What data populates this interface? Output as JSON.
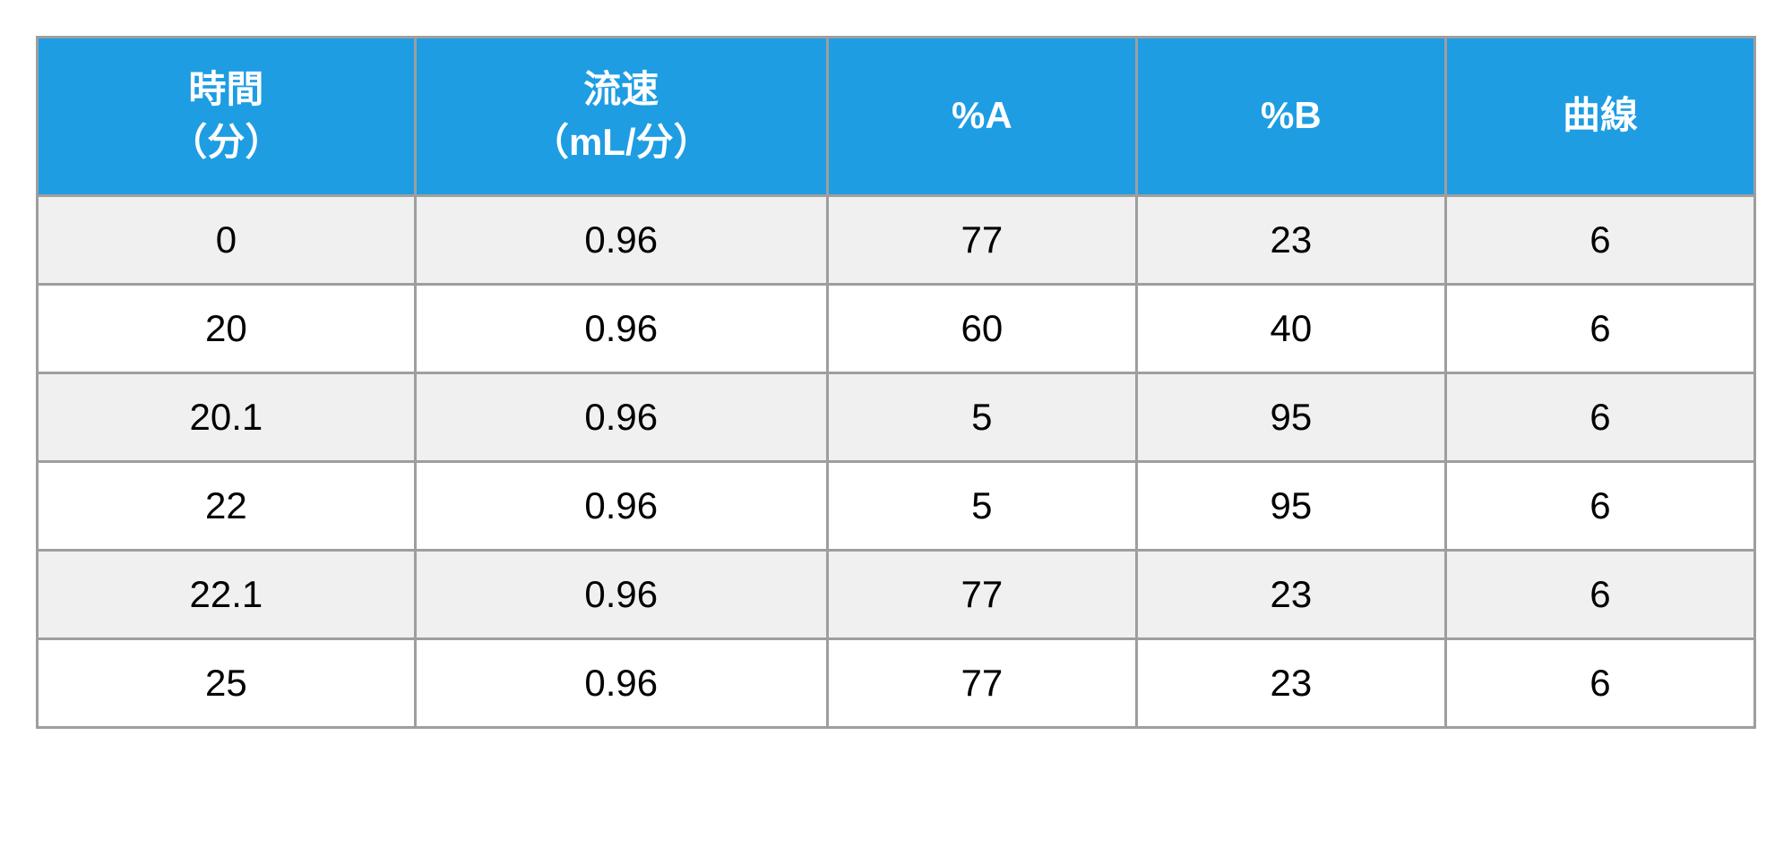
{
  "table": {
    "type": "table",
    "header_bg_color": "#1e9de3",
    "header_text_color": "#ffffff",
    "header_fontsize": 42,
    "header_fontweight": "bold",
    "cell_fontsize": 42,
    "cell_text_color": "#000000",
    "border_color": "#9e9e9e",
    "border_width": 3,
    "row_alt_colors": [
      "#f0f0f0",
      "#ffffff"
    ],
    "columns": [
      {
        "label": "時間\n（分）",
        "width": "22%"
      },
      {
        "label": "流速\n（mL/分）",
        "width": "24%"
      },
      {
        "label": "%A",
        "width": "18%"
      },
      {
        "label": "%B",
        "width": "18%"
      },
      {
        "label": "曲線",
        "width": "18%"
      }
    ],
    "rows": [
      [
        "0",
        "0.96",
        "77",
        "23",
        "6"
      ],
      [
        "20",
        "0.96",
        "60",
        "40",
        "6"
      ],
      [
        "20.1",
        "0.96",
        "5",
        "95",
        "6"
      ],
      [
        "22",
        "0.96",
        "5",
        "95",
        "6"
      ],
      [
        "22.1",
        "0.96",
        "77",
        "23",
        "6"
      ],
      [
        "25",
        "0.96",
        "77",
        "23",
        "6"
      ]
    ]
  }
}
